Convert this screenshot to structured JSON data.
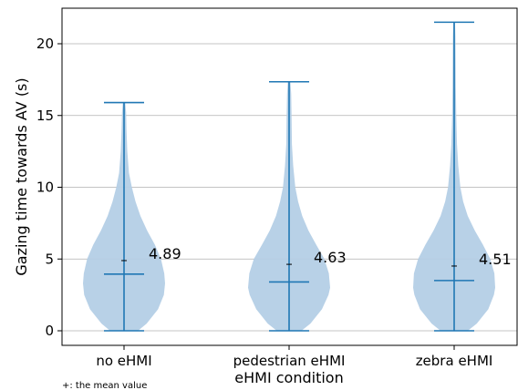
{
  "chart_data": {
    "type": "violin",
    "title": "",
    "xlabel": "eHMI condition",
    "ylabel": "Gazing time towards AV (s)",
    "ylim": [
      -1.1,
      22.5
    ],
    "yticks": [
      0,
      5,
      10,
      15,
      20
    ],
    "grid": "horizontal",
    "note": "+: the mean value",
    "fill_color": "#b4cfe6",
    "line_color": "#1f77b4",
    "categories": [
      "no eHMI",
      "pedestrian eHMI",
      "zebra eHMI"
    ],
    "series": [
      {
        "category": "no eHMI",
        "min": 0.0,
        "max": 15.9,
        "median": 3.95,
        "mean": 4.89,
        "mean_label": "4.89",
        "profile": [
          [
            0.0,
            0.34
          ],
          [
            0.5,
            0.55
          ],
          [
            1.5,
            0.83
          ],
          [
            2.5,
            0.97
          ],
          [
            3.3,
            1.0
          ],
          [
            4.0,
            0.98
          ],
          [
            5.0,
            0.9
          ],
          [
            6.0,
            0.75
          ],
          [
            7.0,
            0.56
          ],
          [
            8.0,
            0.4
          ],
          [
            9.0,
            0.28
          ],
          [
            10.0,
            0.19
          ],
          [
            11.0,
            0.12
          ],
          [
            12.5,
            0.08
          ],
          [
            14.0,
            0.06
          ],
          [
            15.2,
            0.05
          ],
          [
            15.9,
            0.03
          ]
        ]
      },
      {
        "category": "pedestrian eHMI",
        "min": 0.0,
        "max": 17.35,
        "median": 3.4,
        "mean": 4.63,
        "mean_label": "4.63",
        "profile": [
          [
            0.0,
            0.3
          ],
          [
            0.5,
            0.52
          ],
          [
            1.5,
            0.8
          ],
          [
            2.5,
            0.96
          ],
          [
            3.0,
            1.0
          ],
          [
            4.0,
            0.97
          ],
          [
            5.0,
            0.86
          ],
          [
            6.0,
            0.66
          ],
          [
            7.0,
            0.47
          ],
          [
            8.0,
            0.32
          ],
          [
            9.0,
            0.22
          ],
          [
            10.0,
            0.15
          ],
          [
            11.5,
            0.1
          ],
          [
            13.0,
            0.07
          ],
          [
            15.0,
            0.06
          ],
          [
            16.5,
            0.05
          ],
          [
            17.35,
            0.03
          ]
        ]
      },
      {
        "category": "zebra eHMI",
        "min": 0.0,
        "max": 21.5,
        "median": 3.5,
        "mean": 4.51,
        "mean_label": "4.51",
        "profile": [
          [
            0.0,
            0.33
          ],
          [
            0.5,
            0.55
          ],
          [
            1.5,
            0.83
          ],
          [
            2.5,
            0.97
          ],
          [
            3.0,
            1.0
          ],
          [
            4.0,
            0.98
          ],
          [
            5.0,
            0.88
          ],
          [
            6.0,
            0.7
          ],
          [
            7.0,
            0.5
          ],
          [
            8.0,
            0.33
          ],
          [
            9.0,
            0.22
          ],
          [
            10.0,
            0.15
          ],
          [
            11.5,
            0.1
          ],
          [
            13.0,
            0.07
          ],
          [
            15.0,
            0.05
          ],
          [
            17.0,
            0.04
          ],
          [
            19.0,
            0.035
          ],
          [
            20.5,
            0.03
          ],
          [
            21.5,
            0.02
          ]
        ]
      }
    ]
  }
}
